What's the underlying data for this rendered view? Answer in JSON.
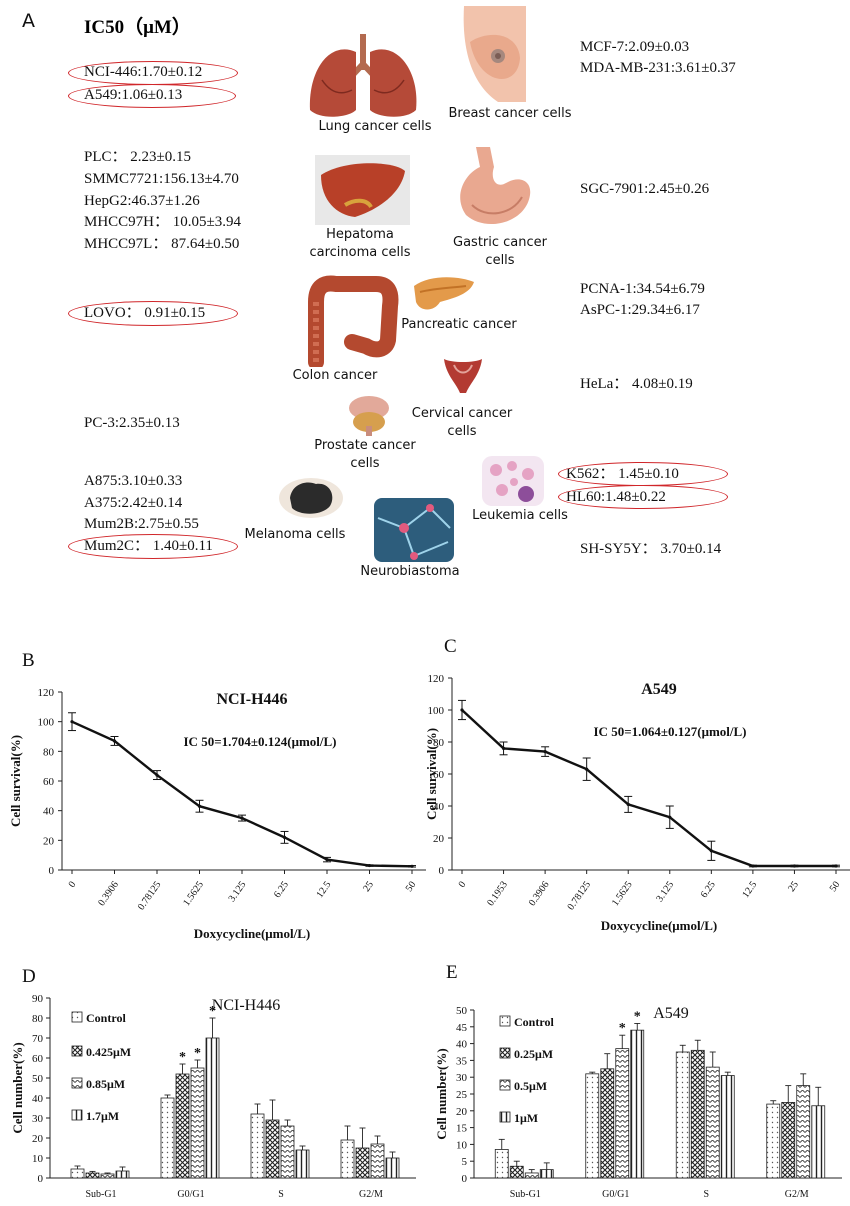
{
  "panelA": {
    "letter": "A",
    "title": "IC50（μM）",
    "left": [
      {
        "label": "NCI-446:1.70±0.12",
        "highlight": true
      },
      {
        "label": "A549:1.06±0.13",
        "highlight": true
      },
      {
        "label": "PLC： 2.23±0.15",
        "highlight": false
      },
      {
        "label": "SMMC7721:156.13±4.70",
        "highlight": false
      },
      {
        "label": "HepG2:46.37±1.26",
        "highlight": false
      },
      {
        "label": "MHCC97H： 10.05±3.94",
        "highlight": false
      },
      {
        "label": "MHCC97L： 87.64±0.50",
        "highlight": false
      },
      {
        "label": "LOVO： 0.91±0.15",
        "highlight": true
      },
      {
        "label": "PC-3:2.35±0.13",
        "highlight": false
      },
      {
        "label": "A875:3.10±0.33",
        "highlight": false
      },
      {
        "label": "A375:2.42±0.14",
        "highlight": false
      },
      {
        "label": "Mum2B:2.75±0.55",
        "highlight": false
      },
      {
        "label": "Mum2C： 1.40±0.11",
        "highlight": true
      }
    ],
    "right": [
      {
        "label": "MCF-7:2.09±0.03",
        "highlight": false
      },
      {
        "label": "MDA-MB-231:3.61±0.37",
        "highlight": false
      },
      {
        "label": "SGC-7901:2.45±0.26",
        "highlight": false
      },
      {
        "label": "PCNA-1:34.54±6.79",
        "highlight": false
      },
      {
        "label": "AsPC-1:29.34±6.17",
        "highlight": false
      },
      {
        "label": "HeLa： 4.08±0.19",
        "highlight": false
      },
      {
        "label": "K562： 1.45±0.10",
        "highlight": true
      },
      {
        "label": "HL60:1.48±0.22",
        "highlight": true
      },
      {
        "label": "SH-SY5Y： 3.70±0.14",
        "highlight": false
      }
    ],
    "organs": {
      "lung": "Lung cancer cells",
      "breast": "Breast cancer cells",
      "liver": "Hepatoma carcinoma cells",
      "gastric": "Gastric cancer cells",
      "colon": "Colon cancer",
      "pancreas": "Pancreatic cancer",
      "cervical": "Cervical cancer cells",
      "prostate": "Prostate cancer cells",
      "melanoma": "Melanoma cells",
      "neuro": "Neurobiastoma",
      "leukemia": "Leukemia cells"
    }
  },
  "chart_data": [
    {
      "panel": "B",
      "type": "line",
      "title": "NCI-H446",
      "annotation": "IC 50=1.704±0.124(μmol/L)",
      "xlabel": "Doxycycline(μmol/L)",
      "ylabel": "Cell survival(%)",
      "ylim": [
        0,
        120
      ],
      "yticks": [
        0,
        20,
        40,
        60,
        80,
        100,
        120
      ],
      "categories": [
        "0",
        "0.3906",
        "0.78125",
        "1.5625",
        "3.125",
        "6.25",
        "12.5",
        "25",
        "50"
      ],
      "values": [
        100,
        87,
        64,
        43,
        35,
        22,
        7,
        3,
        2.5
      ],
      "errors": [
        6,
        3,
        3,
        4,
        2,
        4,
        1.5,
        0.5,
        0.5
      ]
    },
    {
      "panel": "C",
      "type": "line",
      "title": "A549",
      "annotation": "IC 50=1.064±0.127(μmol/L)",
      "xlabel": "Doxycycline(μmol/L)",
      "ylabel": "Cell survival(%)",
      "ylim": [
        0,
        120
      ],
      "yticks": [
        0,
        20,
        40,
        60,
        80,
        100,
        120
      ],
      "categories": [
        "0",
        "0.1953",
        "0.3906",
        "0.78125",
        "1.5625",
        "3.125",
        "6.25",
        "12.5",
        "25",
        "50"
      ],
      "values": [
        100,
        76,
        74,
        63,
        41,
        33,
        12,
        2.5,
        2.5,
        2.5
      ],
      "errors": [
        6,
        4,
        3,
        7,
        5,
        7,
        6,
        0.5,
        0.5,
        0.5
      ]
    },
    {
      "panel": "D",
      "type": "bar",
      "title": "NCI-H446",
      "ylabel": "Cell number(%)",
      "ylim": [
        0,
        90
      ],
      "yticks": [
        0,
        10,
        20,
        30,
        40,
        50,
        60,
        70,
        80,
        90
      ],
      "categories": [
        "Sub-G1",
        "G0/G1",
        "S",
        "G2/M"
      ],
      "series": [
        {
          "name": "Control",
          "values": [
            4.5,
            40,
            32,
            19
          ],
          "errors": [
            1.5,
            1.5,
            5,
            7
          ]
        },
        {
          "name": "0.425μM",
          "values": [
            2.5,
            52,
            29,
            15
          ],
          "errors": [
            0.8,
            5,
            10,
            10
          ]
        },
        {
          "name": "0.85μM",
          "values": [
            2.0,
            55,
            26,
            17
          ],
          "errors": [
            0.5,
            4,
            3,
            4
          ]
        },
        {
          "name": "1.7μM",
          "values": [
            3.5,
            70,
            14,
            10
          ],
          "errors": [
            2,
            10,
            2,
            3
          ]
        }
      ],
      "significance": [
        {
          "category": "G0/G1",
          "series": [
            1,
            2,
            3
          ],
          "mark": "*"
        }
      ]
    },
    {
      "panel": "E",
      "type": "bar",
      "title": "A549",
      "ylabel": "Cell number(%)",
      "ylim": [
        0,
        50
      ],
      "yticks": [
        0,
        5,
        10,
        15,
        20,
        25,
        30,
        35,
        40,
        45,
        50
      ],
      "categories": [
        "Sub-G1",
        "G0/G1",
        "S",
        "G2/M"
      ],
      "series": [
        {
          "name": "Control",
          "values": [
            8.5,
            31,
            37.5,
            22
          ],
          "errors": [
            3,
            0.5,
            2,
            1
          ]
        },
        {
          "name": "0.25μM",
          "values": [
            3.5,
            32.5,
            38,
            22.5
          ],
          "errors": [
            1.5,
            4.5,
            3,
            5
          ]
        },
        {
          "name": "0.5μM",
          "values": [
            1.5,
            38.5,
            33,
            27.5
          ],
          "errors": [
            1,
            4,
            4.5,
            3.5
          ]
        },
        {
          "name": "1μM",
          "values": [
            2.5,
            44,
            30.5,
            21.5
          ],
          "errors": [
            2,
            2,
            1,
            5.5
          ]
        }
      ],
      "significance": [
        {
          "category": "G0/G1",
          "series": [
            2,
            3
          ],
          "mark": "*"
        }
      ]
    }
  ]
}
